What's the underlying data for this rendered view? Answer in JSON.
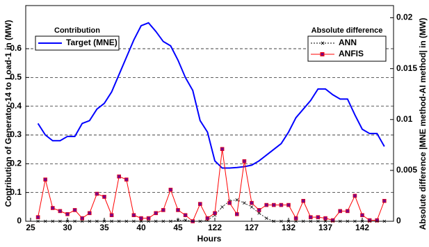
{
  "chart_data": {
    "type": "line",
    "x_label": "Hours",
    "y_label": "Contribution of Generator-14 to Load-1 in (MW)",
    "y2_label": "Absolute difference |MNE method-AI method| in (MW)",
    "categories": [
      "25",
      null,
      null,
      null,
      null,
      "30",
      null,
      null,
      null,
      null,
      "35",
      null,
      null,
      null,
      null,
      "40",
      null,
      null,
      null,
      null,
      "45",
      null,
      null,
      null,
      null,
      "122",
      null,
      null,
      null,
      null,
      "127",
      null,
      null,
      null,
      null,
      "132",
      null,
      null,
      null,
      null,
      "137",
      null,
      null,
      null,
      null,
      "142",
      null,
      null,
      null,
      null
    ],
    "ylim": [
      0,
      0.75
    ],
    "yticks": [
      0,
      0.1,
      0.2,
      0.3,
      0.4,
      0.5,
      0.6
    ],
    "y2lim": [
      0,
      0.0212
    ],
    "y2ticks": [
      0,
      0.005,
      0.01,
      0.015,
      0.02
    ],
    "grid": true,
    "legends": [
      {
        "title": "Contribution",
        "position": "upper left"
      },
      {
        "title": "Absolute difference",
        "position": "upper right"
      }
    ],
    "series": [
      {
        "name": "Target (MNE)",
        "color": "#0000ff",
        "axis": "y",
        "legend": 0,
        "marker": "none",
        "values": [
          null,
          0.34,
          0.3,
          0.28,
          0.28,
          0.295,
          0.295,
          0.34,
          0.35,
          0.39,
          0.41,
          0.45,
          0.51,
          0.57,
          0.63,
          0.68,
          0.69,
          0.66,
          0.625,
          0.61,
          0.56,
          0.5,
          0.455,
          0.35,
          0.31,
          0.21,
          0.185,
          0.185,
          0.187,
          0.19,
          0.195,
          0.21,
          0.23,
          0.25,
          0.27,
          0.31,
          0.36,
          0.39,
          0.42,
          0.46,
          0.46,
          0.44,
          0.425,
          0.425,
          0.37,
          0.32,
          0.305,
          0.305,
          0.26,
          null
        ]
      },
      {
        "name": "ANN",
        "color": "#000000",
        "axis": "y2",
        "legend": 1,
        "marker": "x",
        "values": [
          null,
          0,
          0,
          0,
          0,
          0,
          0,
          0,
          0,
          0,
          0,
          0,
          0,
          0,
          0,
          0,
          0,
          0,
          0,
          0,
          0.0001,
          0.0001,
          0,
          0,
          0.0001,
          0.0006,
          0.0014,
          0.002,
          0.0021,
          0.0018,
          0.0014,
          0.0008,
          0.0003,
          0,
          0,
          0,
          0,
          0,
          0,
          0,
          0,
          0,
          0,
          0,
          0,
          0,
          0,
          0,
          0,
          null
        ]
      },
      {
        "name": "ANFIS",
        "color": "#ff0000",
        "marker_color": "#800080",
        "axis": "y2",
        "legend": 1,
        "marker": "square",
        "values": [
          null,
          0.0004,
          0.0041,
          0.0013,
          0.001,
          0.0007,
          0.0011,
          0.0003,
          0.0008,
          0.0027,
          0.0024,
          0.0006,
          0.0044,
          0.0041,
          0.0006,
          0.0003,
          0.0003,
          0.0008,
          0.0011,
          0.0031,
          0.0011,
          0.0006,
          0,
          0.0017,
          0.0003,
          0.0008,
          0.0071,
          0.0018,
          0.0007,
          0.0059,
          0.0018,
          0.0011,
          0.0016,
          0.0016,
          0.0016,
          0.0016,
          0.0003,
          0.002,
          0.0004,
          0.0004,
          0.0003,
          0.0001,
          0.001,
          0.001,
          0.0025,
          0.0006,
          0.0001,
          0.0001,
          0.002,
          null
        ]
      }
    ]
  }
}
